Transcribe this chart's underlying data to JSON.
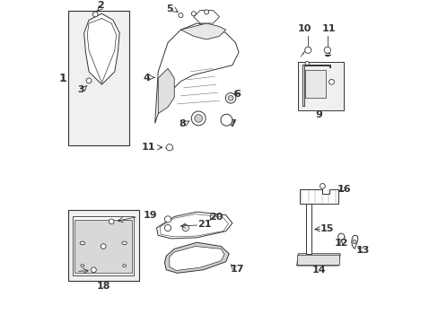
{
  "bg_color": "#ffffff",
  "gray": "#333333",
  "light_gray": "#e8e8e8",
  "mid_gray": "#d0d0d0"
}
